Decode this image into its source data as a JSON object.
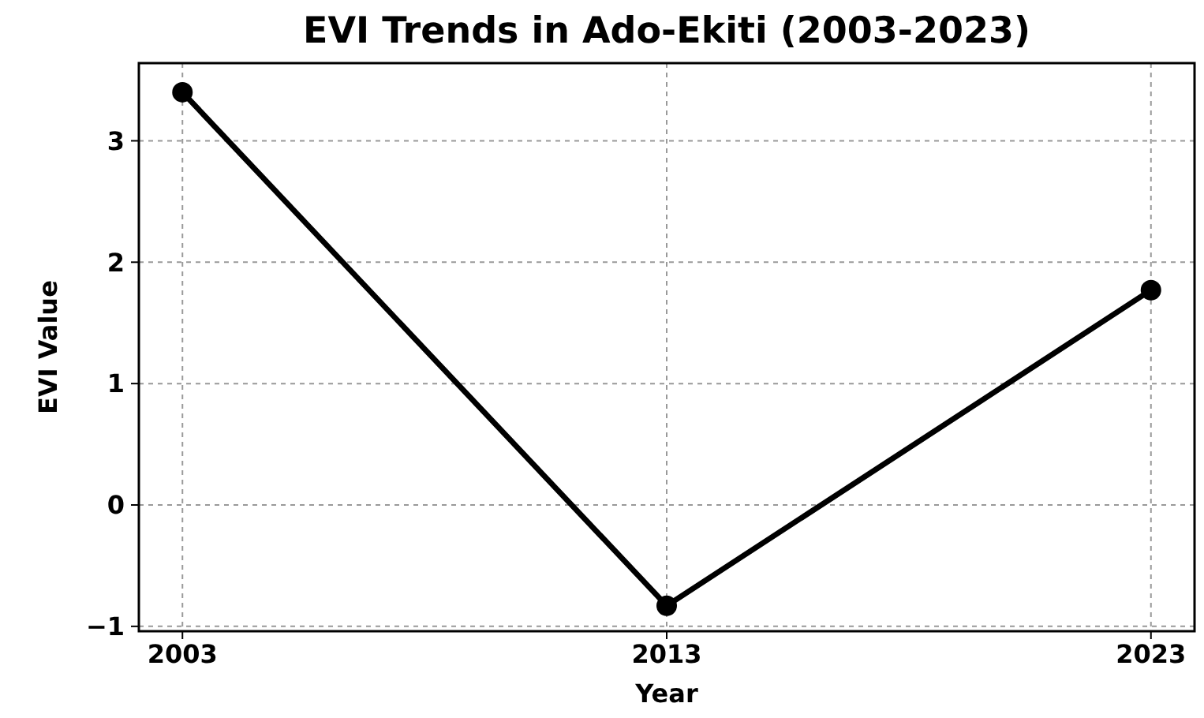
{
  "chart_data": {
    "type": "line",
    "title": "EVI Trends in Ado-Ekiti (2003-2023)",
    "xlabel": "Year",
    "ylabel": "EVI Value",
    "x": [
      2003,
      2013,
      2023
    ],
    "series": [
      {
        "color": "#000000",
        "values": [
          3.4,
          -0.83,
          1.77
        ]
      }
    ],
    "xlim": [
      2002.1,
      2023.9
    ],
    "xticks": [
      2003,
      2013,
      2023
    ],
    "ylim": [
      -1.04,
      3.64
    ],
    "yticks": [
      -1,
      0,
      1,
      2,
      3
    ],
    "grid": true,
    "marker": "circle",
    "line_style": "solid"
  }
}
